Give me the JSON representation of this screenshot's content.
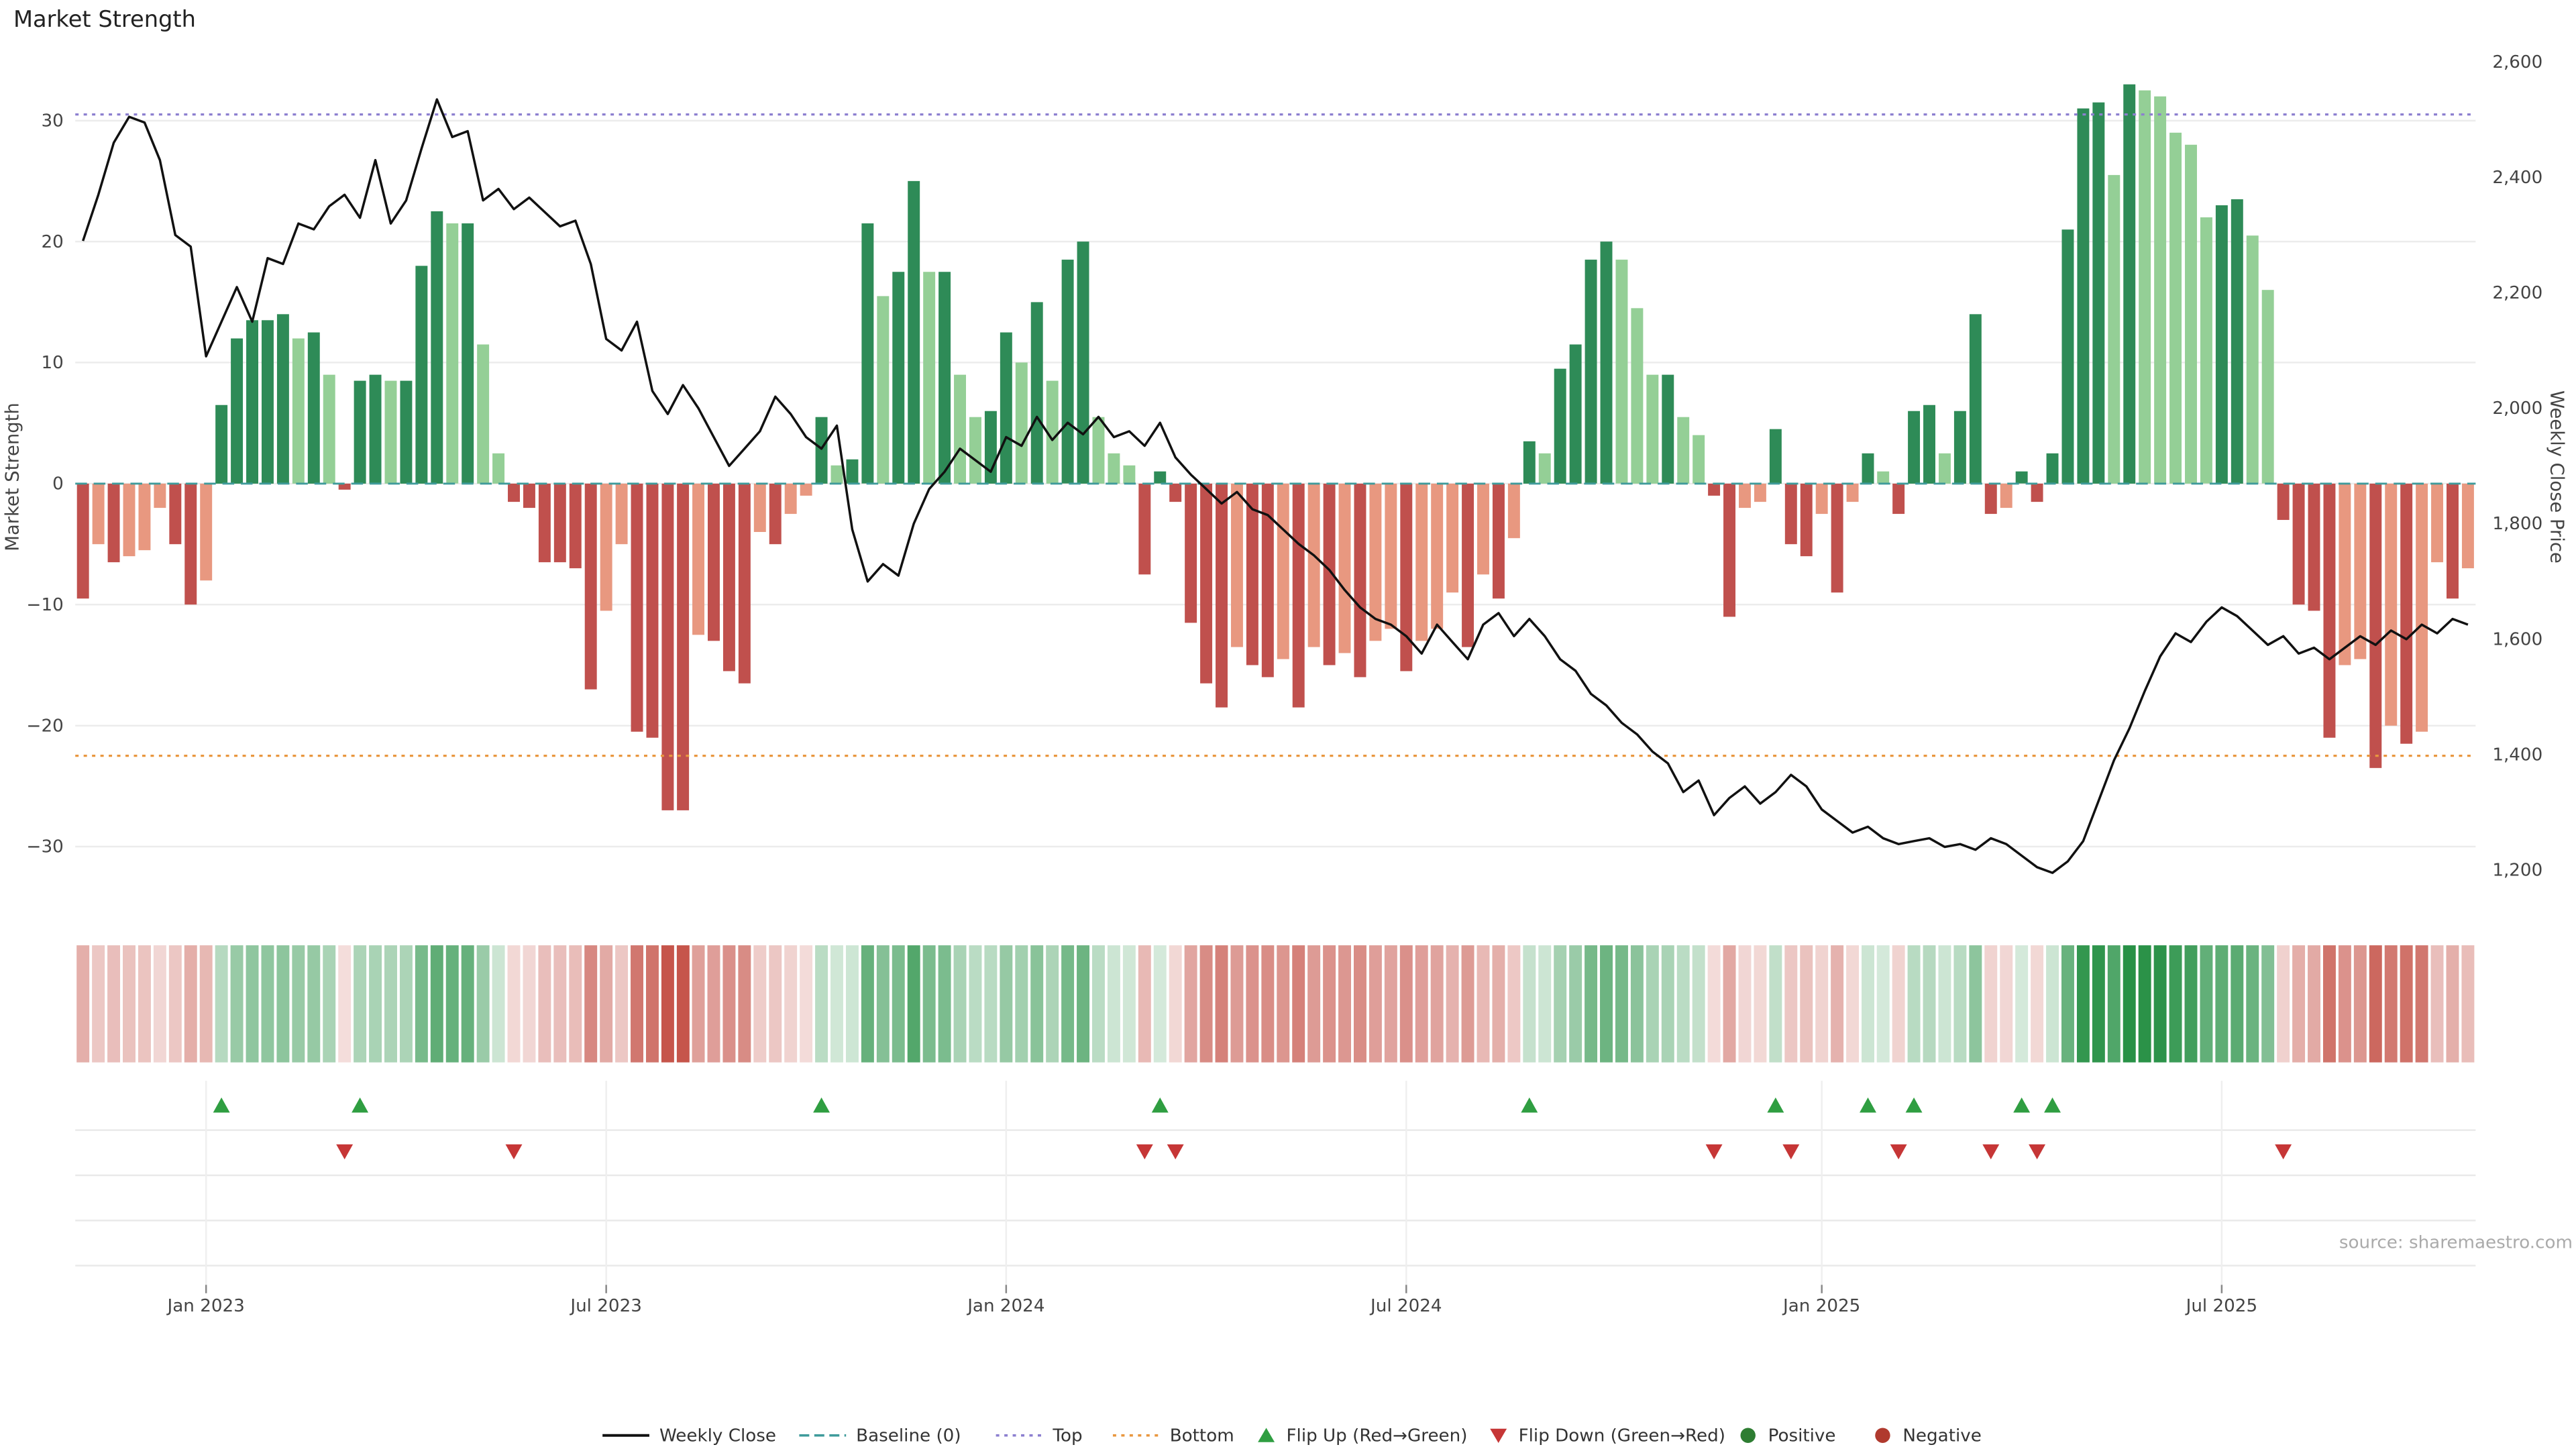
{
  "title": "Market Strength",
  "source": "source: sharemaestro.com",
  "axes": {
    "left_label": "Market Strength",
    "right_label": "Weekly Close Price",
    "left_ticks": [
      30,
      20,
      10,
      0,
      -10,
      -20,
      -30
    ],
    "right_ticks": [
      2600,
      2400,
      2200,
      2000,
      1800,
      1600,
      1400,
      1200
    ],
    "left_range": [
      -34.7,
      35.8
    ],
    "right_range": [
      1142,
      2620
    ]
  },
  "chart_data": {
    "type": "combo-bar-line",
    "freq": "weekly",
    "x_tick_labels": [
      "Jan 2023",
      "Jul 2023",
      "Jan 2024",
      "Jul 2024",
      "Jan 2025",
      "Jul 2025"
    ],
    "x_tick_indices": [
      8,
      34,
      60,
      86,
      113,
      139
    ],
    "baseline": 0,
    "top_threshold": 30.5,
    "bottom_threshold": -22.5,
    "series": [
      {
        "name": "Market Strength",
        "type": "bar",
        "axis": "left",
        "values": [
          -9.5,
          -5,
          -6.5,
          -6,
          -5.5,
          -2,
          -5,
          -10,
          -8,
          6.5,
          12,
          13.5,
          13.5,
          14,
          12,
          12.5,
          9,
          -0.5,
          8.5,
          9,
          8.5,
          8.5,
          18,
          22.5,
          21.5,
          21.5,
          11.5,
          2.5,
          -1.5,
          -2,
          -6.5,
          -6.5,
          -7,
          -17,
          -10.5,
          -5,
          -20.5,
          -21,
          -27,
          -27,
          -12.5,
          -13,
          -15.5,
          -16.5,
          -4,
          -5,
          -2.5,
          -1,
          5.5,
          1.5,
          2,
          21.5,
          15.5,
          17.5,
          25,
          17.5,
          17.5,
          9,
          5.5,
          6,
          12.5,
          10,
          15,
          8.5,
          18.5,
          20,
          5.5,
          2.5,
          1.5,
          -7.5,
          1,
          -1.5,
          -11.5,
          -16.5,
          -18.5,
          -13.5,
          -15,
          -16,
          -14.5,
          -18.5,
          -13.5,
          -15,
          -14,
          -16,
          -13,
          -12,
          -15.5,
          -13,
          -12,
          -9,
          -13.5,
          -7.5,
          -9.5,
          -4.5,
          3.5,
          2.5,
          9.5,
          11.5,
          18.5,
          20,
          18.5,
          14.5,
          9,
          9,
          5.5,
          4,
          -1,
          -11,
          -2,
          -1.5,
          4.5,
          -5,
          -6,
          -2.5,
          -9,
          -1.5,
          2.5,
          1,
          -2.5,
          6,
          6.5,
          2.5,
          6,
          14,
          -2.5,
          -2,
          1,
          -1.5,
          2.5,
          21,
          31,
          31.5,
          25.5,
          33,
          32.5,
          32,
          29,
          28,
          22,
          23,
          23.5,
          20.5,
          16,
          -3,
          -10,
          -10.5,
          -21,
          -15,
          -14.5,
          -23.5,
          -20,
          -21.5,
          -20.5,
          -6.5,
          -9.5,
          -7
        ]
      },
      {
        "name": "Weekly Close",
        "type": "line",
        "axis": "right",
        "values": [
          2290,
          2370,
          2460,
          2505,
          2495,
          2430,
          2300,
          2280,
          2090,
          2150,
          2210,
          2150,
          2260,
          2250,
          2320,
          2310,
          2350,
          2370,
          2330,
          2430,
          2320,
          2360,
          2450,
          2535,
          2470,
          2480,
          2360,
          2380,
          2345,
          2365,
          2340,
          2315,
          2325,
          2250,
          2120,
          2100,
          2150,
          2030,
          1990,
          2040,
          2000,
          1950,
          1900,
          1930,
          1960,
          2020,
          1990,
          1950,
          1930,
          1970,
          1790,
          1700,
          1730,
          1710,
          1800,
          1860,
          1890,
          1930,
          1910,
          1890,
          1950,
          1935,
          1985,
          1945,
          1975,
          1955,
          1985,
          1950,
          1960,
          1935,
          1975,
          1915,
          1885,
          1860,
          1835,
          1855,
          1825,
          1815,
          1790,
          1765,
          1745,
          1720,
          1685,
          1655,
          1635,
          1625,
          1605,
          1575,
          1625,
          1595,
          1565,
          1625,
          1645,
          1605,
          1635,
          1605,
          1565,
          1545,
          1505,
          1485,
          1455,
          1435,
          1405,
          1385,
          1335,
          1355,
          1295,
          1325,
          1345,
          1315,
          1335,
          1365,
          1345,
          1305,
          1285,
          1265,
          1275,
          1255,
          1245,
          1250,
          1255,
          1240,
          1245,
          1235,
          1255,
          1245,
          1225,
          1205,
          1195,
          1215,
          1250,
          1320,
          1390,
          1445,
          1510,
          1570,
          1610,
          1595,
          1630,
          1655,
          1640,
          1615,
          1590,
          1605,
          1575,
          1585,
          1565,
          1585,
          1605,
          1590,
          1615,
          1600,
          1625,
          1610,
          1635,
          1625
        ]
      }
    ]
  },
  "legend": {
    "items": [
      {
        "label": "Weekly Close",
        "marker": "line",
        "color": "#111111"
      },
      {
        "label": "Baseline (0)",
        "marker": "dash",
        "color": "#3f9b9b"
      },
      {
        "label": "Top",
        "marker": "dot-line",
        "color": "#8c7fd0"
      },
      {
        "label": "Bottom",
        "marker": "dot-line",
        "color": "#e9973f"
      },
      {
        "label": "Flip Up (Red→Green)",
        "marker": "triangle-up",
        "color": "#2f9e41"
      },
      {
        "label": "Flip Down (Green→Red)",
        "marker": "triangle-down",
        "color": "#c63636"
      },
      {
        "label": "Positive",
        "marker": "circle",
        "color": "#2e7d32"
      },
      {
        "label": "Negative",
        "marker": "circle",
        "color": "#b03a2e"
      }
    ]
  },
  "colors": {
    "pos_rising": "#2e8b57",
    "pos_falling": "#94cf96",
    "neg_falling": "#c0504d",
    "neg_rising": "#e89880",
    "line": "#111111",
    "baseline": "#3f9b9b",
    "top": "#8c7fd0",
    "bottom": "#e9973f",
    "flip_up": "#2f9e41",
    "flip_down": "#c63636",
    "grid": "#ececec",
    "heat_pos": [
      40,
      145,
      70
    ],
    "heat_neg": [
      198,
      85,
      75
    ]
  }
}
